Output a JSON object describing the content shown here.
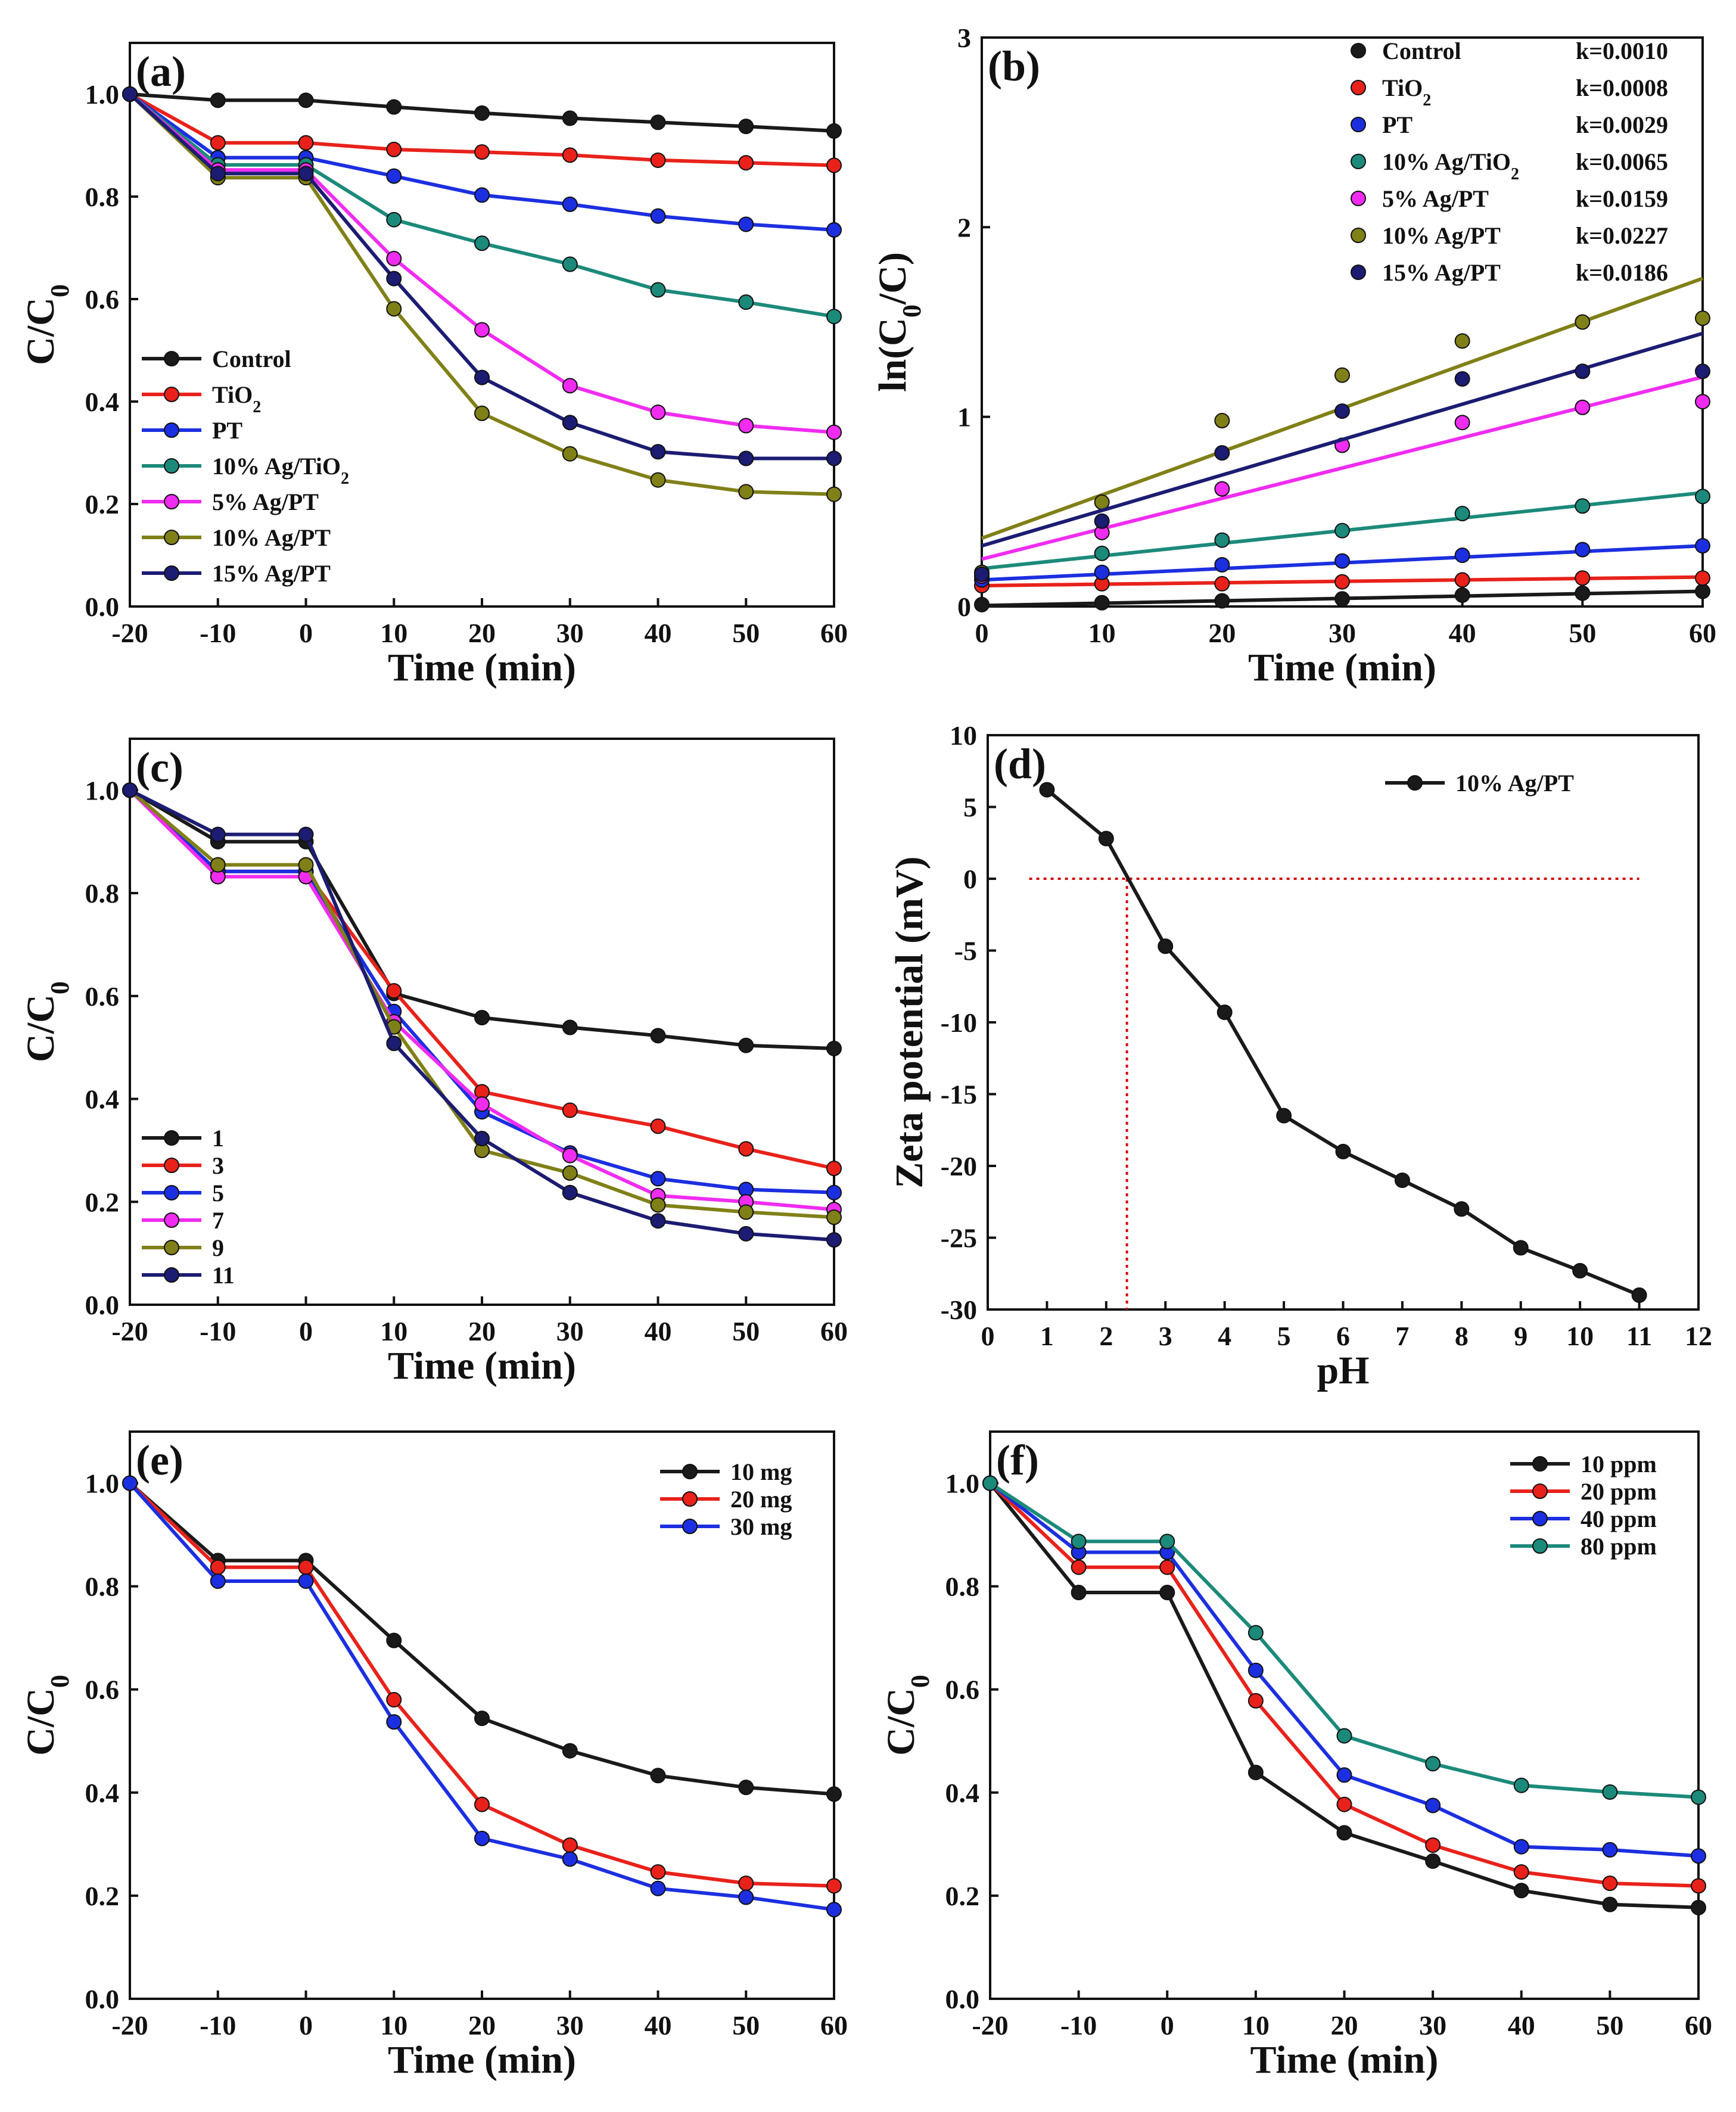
{
  "chart_data": [
    {
      "panel": "(a)",
      "type": "line",
      "xlabel": "Time (min)",
      "ylabel": "C/C0",
      "xlim": [
        -20,
        60
      ],
      "ylim": [
        0.0,
        1.1
      ],
      "xticks": [
        -20,
        -10,
        0,
        10,
        20,
        30,
        40,
        50,
        60
      ],
      "yticks": [
        0.0,
        0.2,
        0.4,
        0.6,
        0.8,
        1.0
      ],
      "legend": "left-bottom",
      "x": [
        -20,
        -10,
        0,
        10,
        20,
        30,
        40,
        50,
        60
      ],
      "series": [
        {
          "name": "Control",
          "color": "#1a1a1a",
          "values": [
            1.0,
            0.988,
            0.988,
            0.975,
            0.963,
            0.953,
            0.945,
            0.937,
            0.928
          ]
        },
        {
          "name": "TiO2",
          "color": "#e8221b",
          "values": [
            1.0,
            0.905,
            0.905,
            0.892,
            0.887,
            0.881,
            0.871,
            0.866,
            0.861
          ]
        },
        {
          "name": "PT",
          "color": "#1c2fe0",
          "values": [
            1.0,
            0.876,
            0.876,
            0.84,
            0.803,
            0.785,
            0.762,
            0.746,
            0.735
          ]
        },
        {
          "name": "10% Ag/TiO2",
          "color": "#1c8a7a",
          "values": [
            1.0,
            0.862,
            0.862,
            0.755,
            0.709,
            0.668,
            0.618,
            0.594,
            0.566
          ]
        },
        {
          "name": "5%   Ag/PT",
          "color": "#f02cf0",
          "values": [
            1.0,
            0.852,
            0.852,
            0.679,
            0.54,
            0.431,
            0.379,
            0.353,
            0.34
          ]
        },
        {
          "name": "10% Ag/PT",
          "color": "#808018",
          "values": [
            1.0,
            0.837,
            0.837,
            0.581,
            0.377,
            0.298,
            0.247,
            0.224,
            0.219
          ]
        },
        {
          "name": "15% Ag/PT",
          "color": "#1c1c72",
          "values": [
            1.0,
            0.845,
            0.845,
            0.64,
            0.447,
            0.359,
            0.302,
            0.289,
            0.289
          ]
        }
      ]
    },
    {
      "panel": "(b)",
      "type": "scatter",
      "xlabel": "Time (min)",
      "ylabel": "ln(C0/C)",
      "xlim": [
        0,
        60
      ],
      "ylim": [
        0,
        3
      ],
      "xticks": [
        0,
        10,
        20,
        30,
        40,
        50,
        60
      ],
      "yticks": [
        0,
        1,
        2,
        3
      ],
      "legend": "top-right",
      "fit_lines": true,
      "x": [
        0,
        10,
        20,
        30,
        40,
        50,
        60
      ],
      "series": [
        {
          "name": "Control",
          "k": "k=0.0010",
          "color": "#1a1a1a",
          "values": [
            0.01,
            0.02,
            0.03,
            0.04,
            0.06,
            0.07,
            0.08
          ],
          "fit": [
            0.005,
            0.08
          ]
        },
        {
          "name": "TiO2",
          "k": "k=0.0008",
          "color": "#e8221b",
          "values": [
            0.11,
            0.12,
            0.12,
            0.13,
            0.14,
            0.15,
            0.15
          ],
          "fit": [
            0.11,
            0.155
          ]
        },
        {
          "name": "PT",
          "k": "k=0.0029",
          "color": "#1c2fe0",
          "values": [
            0.14,
            0.18,
            0.22,
            0.24,
            0.27,
            0.3,
            0.32
          ],
          "fit": [
            0.14,
            0.32
          ]
        },
        {
          "name": "10% Ag/TiO2",
          "k": "k=0.0065",
          "color": "#1c8a7a",
          "values": [
            0.16,
            0.28,
            0.35,
            0.4,
            0.49,
            0.53,
            0.58
          ],
          "fit": [
            0.2,
            0.6
          ]
        },
        {
          "name": "5% Ag/PT",
          "k": "k=0.0159",
          "color": "#f02cf0",
          "values": [
            0.16,
            0.39,
            0.62,
            0.85,
            0.97,
            1.05,
            1.08
          ],
          "fit": [
            0.25,
            1.21
          ]
        },
        {
          "name": "10% Ag/PT",
          "k": "k=0.0227",
          "color": "#808018",
          "values": [
            0.18,
            0.55,
            0.98,
            1.22,
            1.4,
            1.5,
            1.52
          ],
          "fit": [
            0.36,
            1.73
          ]
        },
        {
          "name": "15% Ag/PT",
          "k": "k=0.0186",
          "color": "#1c1c72",
          "values": [
            0.17,
            0.45,
            0.81,
            1.03,
            1.2,
            1.24,
            1.24
          ],
          "fit": [
            0.32,
            1.44
          ]
        }
      ]
    },
    {
      "panel": "(c)",
      "type": "line",
      "xlabel": "Time (min)",
      "ylabel": "C/C0",
      "xlim": [
        -20,
        60
      ],
      "ylim": [
        0.0,
        1.1
      ],
      "xticks": [
        -20,
        -10,
        0,
        10,
        20,
        30,
        40,
        50,
        60
      ],
      "yticks": [
        0.0,
        0.2,
        0.4,
        0.6,
        0.8,
        1.0
      ],
      "legend": "left-bottom",
      "x": [
        -20,
        -10,
        0,
        10,
        20,
        30,
        40,
        50,
        60
      ],
      "series": [
        {
          "name": "1",
          "color": "#1a1a1a",
          "values": [
            1.0,
            0.9,
            0.9,
            0.605,
            0.558,
            0.539,
            0.523,
            0.504,
            0.498
          ]
        },
        {
          "name": "3",
          "color": "#e8221b",
          "values": [
            1.0,
            0.842,
            0.842,
            0.61,
            0.414,
            0.378,
            0.347,
            0.303,
            0.265
          ]
        },
        {
          "name": "5",
          "color": "#1c2fe0",
          "values": [
            1.0,
            0.842,
            0.842,
            0.57,
            0.375,
            0.295,
            0.245,
            0.224,
            0.218
          ]
        },
        {
          "name": "7",
          "color": "#f02cf0",
          "values": [
            1.0,
            0.832,
            0.832,
            0.55,
            0.39,
            0.29,
            0.212,
            0.2,
            0.185
          ]
        },
        {
          "name": "9",
          "color": "#808018",
          "values": [
            1.0,
            0.855,
            0.855,
            0.54,
            0.3,
            0.256,
            0.194,
            0.18,
            0.17
          ]
        },
        {
          "name": "11",
          "color": "#1c1c72",
          "values": [
            1.0,
            0.914,
            0.914,
            0.508,
            0.323,
            0.218,
            0.163,
            0.138,
            0.126
          ]
        }
      ]
    },
    {
      "panel": "(d)",
      "type": "line",
      "xlabel": "pH",
      "ylabel": "Zeta potential (mV)",
      "xlim": [
        0,
        12
      ],
      "ylim": [
        -30,
        10
      ],
      "xticks": [
        0,
        1,
        2,
        3,
        4,
        5,
        6,
        7,
        8,
        9,
        10,
        11,
        12
      ],
      "yticks": [
        -30,
        -25,
        -20,
        -15,
        -10,
        -5,
        0,
        5,
        10
      ],
      "legend": "top-right",
      "reference_lines": {
        "zero_line_x": [
          0.7,
          11.0
        ],
        "isoelectric_ph": 2.35
      },
      "x": [
        1,
        2,
        3,
        4,
        5,
        6,
        7,
        8,
        9,
        10,
        11
      ],
      "series": [
        {
          "name": "10% Ag/PT",
          "color": "#1a1a1a",
          "values": [
            6.2,
            2.8,
            -4.7,
            -9.3,
            -16.5,
            -19.0,
            -21.0,
            -23.0,
            -25.7,
            -27.3,
            -29.0
          ]
        }
      ]
    },
    {
      "panel": "(e)",
      "type": "line",
      "xlabel": "Time (min)",
      "ylabel": "C/C0",
      "xlim": [
        -20,
        60
      ],
      "ylim": [
        0.0,
        1.1
      ],
      "xticks": [
        -20,
        -10,
        0,
        10,
        20,
        30,
        40,
        50,
        60
      ],
      "yticks": [
        0.0,
        0.2,
        0.4,
        0.6,
        0.8,
        1.0
      ],
      "legend": "top-right",
      "x": [
        -20,
        -10,
        0,
        10,
        20,
        30,
        40,
        50,
        60
      ],
      "series": [
        {
          "name": "10 mg",
          "color": "#1a1a1a",
          "values": [
            1.0,
            0.85,
            0.85,
            0.695,
            0.544,
            0.481,
            0.433,
            0.41,
            0.397
          ]
        },
        {
          "name": "20 mg",
          "color": "#e8221b",
          "values": [
            1.0,
            0.837,
            0.837,
            0.58,
            0.377,
            0.298,
            0.246,
            0.224,
            0.219
          ]
        },
        {
          "name": "30 mg",
          "color": "#1c2fe0",
          "values": [
            1.0,
            0.81,
            0.81,
            0.537,
            0.311,
            0.271,
            0.214,
            0.197,
            0.173
          ]
        }
      ]
    },
    {
      "panel": "(f)",
      "type": "line",
      "xlabel": "Time (min)",
      "ylabel": "C/C0",
      "xlim": [
        -20,
        60
      ],
      "ylim": [
        0.0,
        1.1
      ],
      "xticks": [
        -20,
        -10,
        0,
        10,
        20,
        30,
        40,
        50,
        60
      ],
      "yticks": [
        0.0,
        0.2,
        0.4,
        0.6,
        0.8,
        1.0
      ],
      "legend": "top-right",
      "x": [
        -20,
        -10,
        0,
        10,
        20,
        30,
        40,
        50,
        60
      ],
      "series": [
        {
          "name": "10 ppm",
          "color": "#1a1a1a",
          "values": [
            1.0,
            0.788,
            0.788,
            0.439,
            0.322,
            0.267,
            0.21,
            0.183,
            0.177
          ]
        },
        {
          "name": "20 ppm",
          "color": "#e8221b",
          "values": [
            1.0,
            0.837,
            0.837,
            0.578,
            0.377,
            0.298,
            0.246,
            0.224,
            0.219
          ]
        },
        {
          "name": "40 ppm",
          "color": "#1c2fe0",
          "values": [
            1.0,
            0.866,
            0.866,
            0.637,
            0.434,
            0.375,
            0.295,
            0.289,
            0.277
          ]
        },
        {
          "name": "80 ppm",
          "color": "#1c8a7a",
          "values": [
            1.0,
            0.887,
            0.887,
            0.71,
            0.51,
            0.456,
            0.414,
            0.401,
            0.391
          ]
        }
      ]
    }
  ]
}
